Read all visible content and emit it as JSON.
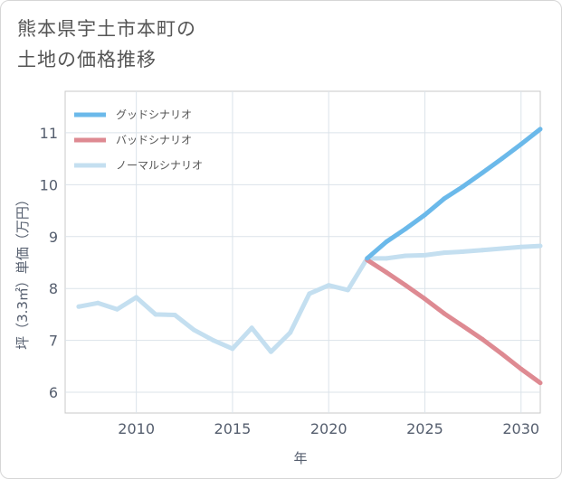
{
  "title_lines": [
    "熊本県宇土市本町の",
    "土地の価格推移"
  ],
  "chart_data": {
    "type": "line",
    "title": "熊本県宇土市本町の土地の価格推移",
    "xlabel": "年",
    "ylabel": "坪（3.3㎡）単価（万円）",
    "xlim": [
      2006.3,
      2031
    ],
    "ylim": [
      5.6,
      11.8
    ],
    "xticks": [
      2010,
      2015,
      2020,
      2025,
      2030
    ],
    "yticks": [
      6,
      7,
      8,
      9,
      10,
      11
    ],
    "grid": true,
    "legend_position": "top-left",
    "series": [
      {
        "name": "グッドシナリオ",
        "color": "#6bb9ea",
        "x": [
          2022,
          2023,
          2024,
          2025,
          2026,
          2027,
          2028,
          2029,
          2030,
          2031
        ],
        "y": [
          8.58,
          8.9,
          9.15,
          9.42,
          9.73,
          9.97,
          10.23,
          10.5,
          10.78,
          11.07
        ]
      },
      {
        "name": "バッドシナリオ",
        "color": "#de8a92",
        "x": [
          2022,
          2023,
          2024,
          2025,
          2026,
          2027,
          2028,
          2029,
          2030,
          2031
        ],
        "y": [
          8.55,
          8.31,
          8.06,
          7.8,
          7.52,
          7.27,
          7.02,
          6.74,
          6.45,
          6.18
        ]
      },
      {
        "name": "ノーマルシナリオ",
        "color": "#c4dff0",
        "x": [
          2007,
          2008,
          2009,
          2010,
          2011,
          2012,
          2013,
          2014,
          2015,
          2016,
          2017,
          2018,
          2019,
          2020,
          2021,
          2022,
          2023,
          2024,
          2025,
          2026,
          2027,
          2028,
          2029,
          2030,
          2031
        ],
        "y": [
          7.65,
          7.72,
          7.6,
          7.83,
          7.5,
          7.49,
          7.2,
          7.0,
          6.84,
          7.24,
          6.78,
          7.15,
          7.9,
          8.06,
          7.97,
          8.58,
          8.58,
          8.63,
          8.64,
          8.69,
          8.71,
          8.74,
          8.77,
          8.8,
          8.82
        ]
      }
    ]
  }
}
